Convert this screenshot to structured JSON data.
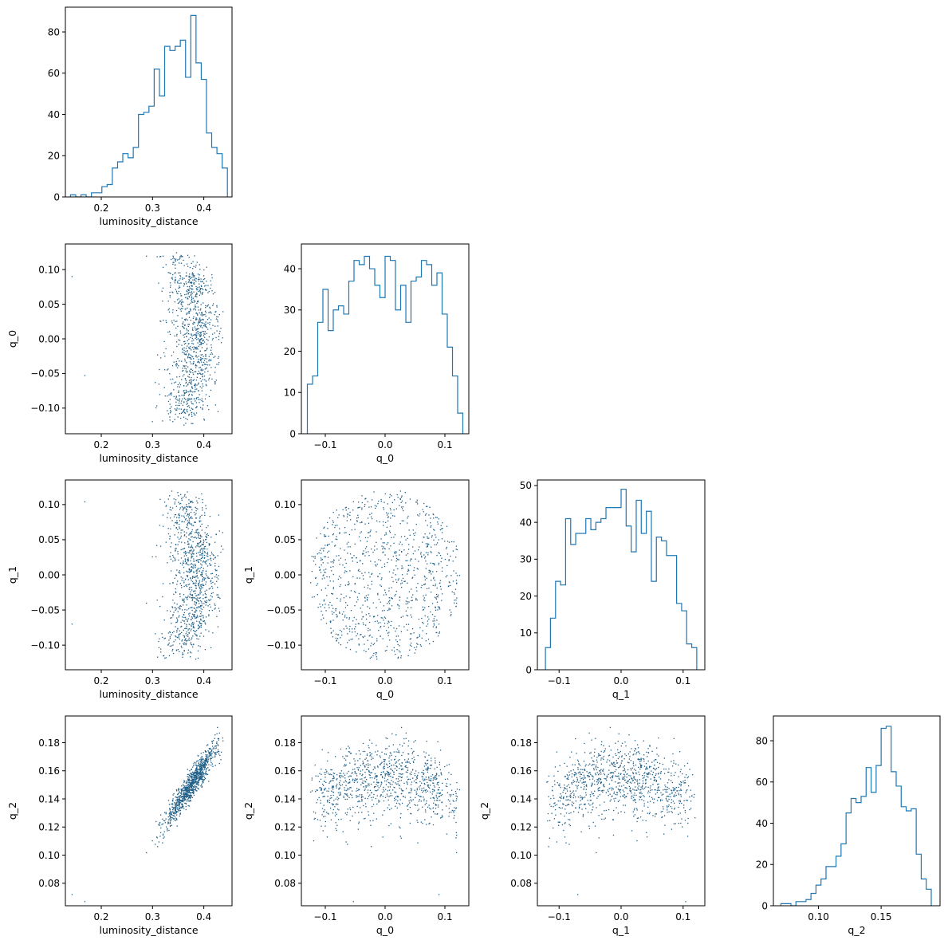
{
  "chart_data": {
    "type": "corner",
    "title": "",
    "parameters": [
      "luminosity_distance",
      "q_0",
      "q_1",
      "q_2"
    ],
    "marker_color": "#1f77b4",
    "grid": false,
    "panels": [
      {
        "id": "hist-luminosity_distance",
        "type": "histogram-step",
        "xlabel": "luminosity_distance",
        "ylabel": "",
        "xlim": [
          0.13,
          0.455
        ],
        "ylim": [
          0,
          92
        ],
        "xticks": [
          0.2,
          0.3,
          0.4
        ],
        "xticklabels": [
          "0.2",
          "0.3",
          "0.4"
        ],
        "yticks": [
          0,
          20,
          40,
          60,
          80
        ],
        "yticklabels": [
          "0",
          "20",
          "40",
          "60",
          "80"
        ],
        "bin_edges": [
          0.14,
          0.1502,
          0.1604,
          0.1706,
          0.1808,
          0.191,
          0.2012,
          0.2114,
          0.2216,
          0.2318,
          0.242,
          0.2522,
          0.2624,
          0.2726,
          0.2828,
          0.293,
          0.3032,
          0.3134,
          0.3236,
          0.3338,
          0.344,
          0.3542,
          0.3644,
          0.3746,
          0.3848,
          0.395,
          0.4052,
          0.4154,
          0.4256,
          0.4358,
          0.446
        ],
        "counts": [
          1,
          0,
          1,
          0,
          2,
          2,
          5,
          6,
          14,
          17,
          21,
          19,
          24,
          40,
          41,
          44,
          62,
          49,
          73,
          71,
          73,
          76,
          58,
          88,
          65,
          57,
          31,
          24,
          21,
          14
        ]
      },
      {
        "id": "hist-q_0",
        "type": "histogram-step",
        "xlabel": "q_0",
        "ylabel": "",
        "xlim": [
          -0.14,
          0.14
        ],
        "ylim": [
          0,
          46
        ],
        "xticks": [
          -0.1,
          0.0,
          0.1
        ],
        "xticklabels": [
          "−0.1",
          "0.0",
          "0.1"
        ],
        "yticks": [
          0,
          10,
          20,
          30,
          40
        ],
        "yticklabels": [
          "0",
          "10",
          "20",
          "30",
          "40"
        ],
        "bin_edges": [
          -0.13,
          -0.1213,
          -0.1127,
          -0.104,
          -0.0953,
          -0.0867,
          -0.078,
          -0.0693,
          -0.0607,
          -0.052,
          -0.0433,
          -0.0347,
          -0.026,
          -0.0173,
          -0.0087,
          0.0,
          0.0087,
          0.0173,
          0.026,
          0.0347,
          0.0433,
          0.052,
          0.0607,
          0.0693,
          0.078,
          0.0867,
          0.0953,
          0.104,
          0.1127,
          0.1213,
          0.13
        ],
        "counts": [
          12,
          14,
          27,
          35,
          25,
          30,
          31,
          29,
          37,
          42,
          41,
          43,
          40,
          36,
          33,
          43,
          42,
          30,
          36,
          27,
          37,
          38,
          42,
          41,
          36,
          39,
          29,
          21,
          14,
          5
        ]
      },
      {
        "id": "hist-q_1",
        "type": "histogram-step",
        "xlabel": "q_1",
        "ylabel": "",
        "xlim": [
          -0.135,
          0.135
        ],
        "ylim": [
          0,
          51.5
        ],
        "xticks": [
          -0.1,
          0.0,
          0.1
        ],
        "xticklabels": [
          "−0.1",
          "0.0",
          "0.1"
        ],
        "yticks": [
          0,
          10,
          20,
          30,
          40,
          50
        ],
        "yticklabels": [
          "0",
          "10",
          "20",
          "30",
          "40",
          "50"
        ],
        "bin_edges": [
          -0.122,
          -0.1139,
          -0.1057,
          -0.0976,
          -0.0895,
          -0.0813,
          -0.0732,
          -0.0651,
          -0.0569,
          -0.0488,
          -0.0407,
          -0.0325,
          -0.0244,
          -0.0163,
          -0.0081,
          0.0,
          0.0081,
          0.0163,
          0.0244,
          0.0325,
          0.0407,
          0.0488,
          0.0569,
          0.0651,
          0.0732,
          0.0813,
          0.0895,
          0.0976,
          0.1057,
          0.1139,
          0.122
        ],
        "counts": [
          6,
          14,
          24,
          23,
          41,
          34,
          37,
          37,
          41,
          38,
          40,
          41,
          44,
          44,
          44,
          49,
          39,
          32,
          46,
          37,
          43,
          24,
          36,
          35,
          31,
          31,
          18,
          16,
          7,
          6
        ]
      },
      {
        "id": "hist-q_2",
        "type": "histogram-step",
        "xlabel": "q_2",
        "ylabel": "",
        "xlim": [
          0.064,
          0.197
        ],
        "ylim": [
          0,
          92
        ],
        "xticks": [
          0.1,
          0.15
        ],
        "xticklabels": [
          "0.10",
          "0.15"
        ],
        "yticks": [
          0,
          20,
          40,
          60,
          80
        ],
        "yticklabels": [
          "0",
          "20",
          "40",
          "60",
          "80"
        ],
        "bin_edges": [
          0.07,
          0.074,
          0.078,
          0.082,
          0.086,
          0.09,
          0.094,
          0.098,
          0.102,
          0.106,
          0.11,
          0.114,
          0.118,
          0.122,
          0.126,
          0.13,
          0.134,
          0.138,
          0.142,
          0.146,
          0.15,
          0.154,
          0.158,
          0.162,
          0.166,
          0.17,
          0.174,
          0.178,
          0.182,
          0.186,
          0.19
        ],
        "counts": [
          1,
          1,
          0,
          2,
          2,
          3,
          6,
          10,
          13,
          19,
          19,
          24,
          30,
          45,
          52,
          50,
          53,
          67,
          55,
          68,
          86,
          87,
          65,
          58,
          48,
          46,
          47,
          25,
          13,
          8
        ]
      },
      {
        "id": "scatter-q_0-vs-luminosity_distance",
        "type": "scatter",
        "xlabel": "luminosity_distance",
        "ylabel": "q_0",
        "xlim": [
          0.13,
          0.455
        ],
        "ylim": [
          -0.137,
          0.137
        ],
        "xticks": [
          0.2,
          0.3,
          0.4
        ],
        "xticklabels": [
          "0.2",
          "0.3",
          "0.4"
        ],
        "yticks": [
          -0.1,
          -0.05,
          0.0,
          0.05,
          0.1
        ],
        "yticklabels": [
          "−0.10",
          "−0.05",
          "0.00",
          "0.05",
          "0.10"
        ]
      },
      {
        "id": "scatter-q_1-vs-luminosity_distance",
        "type": "scatter",
        "xlabel": "luminosity_distance",
        "ylabel": "q_1",
        "xlim": [
          0.13,
          0.455
        ],
        "ylim": [
          -0.135,
          0.135
        ],
        "xticks": [
          0.2,
          0.3,
          0.4
        ],
        "xticklabels": [
          "0.2",
          "0.3",
          "0.4"
        ],
        "yticks": [
          -0.1,
          -0.05,
          0.0,
          0.05,
          0.1
        ],
        "yticklabels": [
          "−0.10",
          "−0.05",
          "0.00",
          "0.05",
          "0.10"
        ]
      },
      {
        "id": "scatter-q_1-vs-q_0",
        "type": "scatter",
        "xlabel": "q_0",
        "ylabel": "q_1",
        "xlim": [
          -0.14,
          0.14
        ],
        "ylim": [
          -0.135,
          0.135
        ],
        "xticks": [
          -0.1,
          0.0,
          0.1
        ],
        "xticklabels": [
          "−0.1",
          "0.0",
          "0.1"
        ],
        "yticks": [
          -0.1,
          -0.05,
          0.0,
          0.05,
          0.1
        ],
        "yticklabels": [
          "−0.10",
          "−0.05",
          "0.00",
          "0.05",
          "0.10"
        ]
      },
      {
        "id": "scatter-q_2-vs-luminosity_distance",
        "type": "scatter",
        "xlabel": "luminosity_distance",
        "ylabel": "q_2",
        "xlim": [
          0.13,
          0.455
        ],
        "ylim": [
          0.064,
          0.199
        ],
        "xticks": [
          0.2,
          0.3,
          0.4
        ],
        "xticklabels": [
          "0.2",
          "0.3",
          "0.4"
        ],
        "yticks": [
          0.08,
          0.1,
          0.12,
          0.14,
          0.16,
          0.18
        ],
        "yticklabels": [
          "0.08",
          "0.10",
          "0.12",
          "0.14",
          "0.16",
          "0.18"
        ]
      },
      {
        "id": "scatter-q_2-vs-q_0",
        "type": "scatter",
        "xlabel": "q_0",
        "ylabel": "q_2",
        "xlim": [
          -0.14,
          0.14
        ],
        "ylim": [
          0.064,
          0.199
        ],
        "xticks": [
          -0.1,
          0.0,
          0.1
        ],
        "xticklabels": [
          "−0.1",
          "0.0",
          "0.1"
        ],
        "yticks": [
          0.08,
          0.1,
          0.12,
          0.14,
          0.16,
          0.18
        ],
        "yticklabels": [
          "0.08",
          "0.10",
          "0.12",
          "0.14",
          "0.16",
          "0.18"
        ]
      },
      {
        "id": "scatter-q_2-vs-q_1",
        "type": "scatter",
        "xlabel": "q_1",
        "ylabel": "q_2",
        "xlim": [
          -0.135,
          0.135
        ],
        "ylim": [
          0.064,
          0.199
        ],
        "xticks": [
          -0.1,
          0.0,
          0.1
        ],
        "xticklabels": [
          "−0.1",
          "0.0",
          "0.1"
        ],
        "yticks": [
          0.08,
          0.1,
          0.12,
          0.14,
          0.16,
          0.18
        ],
        "yticklabels": [
          "0.08",
          "0.10",
          "0.12",
          "0.14",
          "0.16",
          "0.18"
        ]
      }
    ]
  }
}
